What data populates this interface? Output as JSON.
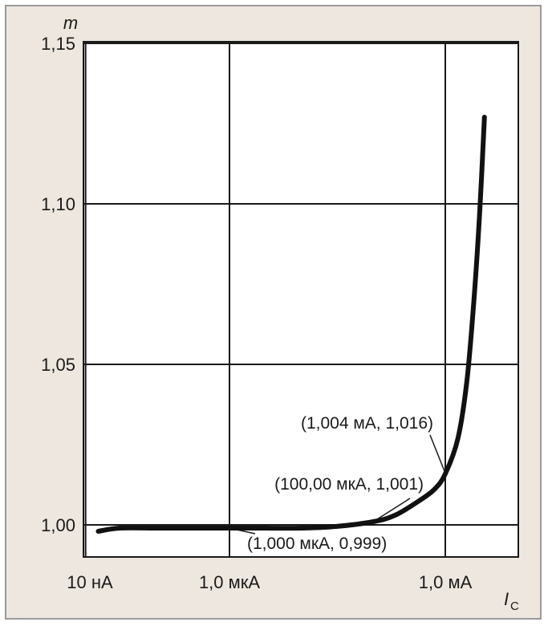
{
  "chart_data": {
    "type": "line",
    "title": "",
    "xlabel": "I",
    "xlabel_sub": "C",
    "ylabel": "m",
    "x_scale": "log",
    "x_unit": "A",
    "xlim": [
      1e-08,
      0.004
    ],
    "ylim": [
      0.99,
      1.15
    ],
    "grid": true,
    "x_ticks": [
      {
        "value": 1e-08,
        "label": "10 нА"
      },
      {
        "value": 1e-06,
        "label": "1,0 мкА"
      },
      {
        "value": 0.001,
        "label": "1,0 мА"
      }
    ],
    "y_ticks": [
      {
        "value": 1.0,
        "label": "1,00"
      },
      {
        "value": 1.05,
        "label": "1,05"
      },
      {
        "value": 1.1,
        "label": "1,10"
      },
      {
        "value": 1.15,
        "label": "1,15"
      }
    ],
    "series": [
      {
        "x": [
          1.5e-08,
          3e-08,
          1e-07,
          3e-07,
          1e-06,
          3e-06,
          1e-05,
          3e-05,
          0.0001,
          0.0002,
          0.0004,
          0.0007,
          0.001004,
          0.0015,
          0.002,
          0.0025,
          0.003,
          0.0035
        ],
        "y": [
          0.998,
          0.999,
          0.999,
          0.999,
          0.999,
          0.999,
          0.999,
          0.9995,
          1.001,
          1.003,
          1.007,
          1.011,
          1.016,
          1.027,
          1.045,
          1.07,
          1.097,
          1.127
        ]
      }
    ],
    "annotations": [
      {
        "text": "(1,004 мА, 1,016)",
        "x": 0.001004,
        "y": 1.016
      },
      {
        "text": "(100,00 мкА, 1,001)",
        "x": 0.0001,
        "y": 1.001
      },
      {
        "text": "(1,000 мкА, 0,999)",
        "x": 1e-06,
        "y": 0.999
      }
    ]
  }
}
